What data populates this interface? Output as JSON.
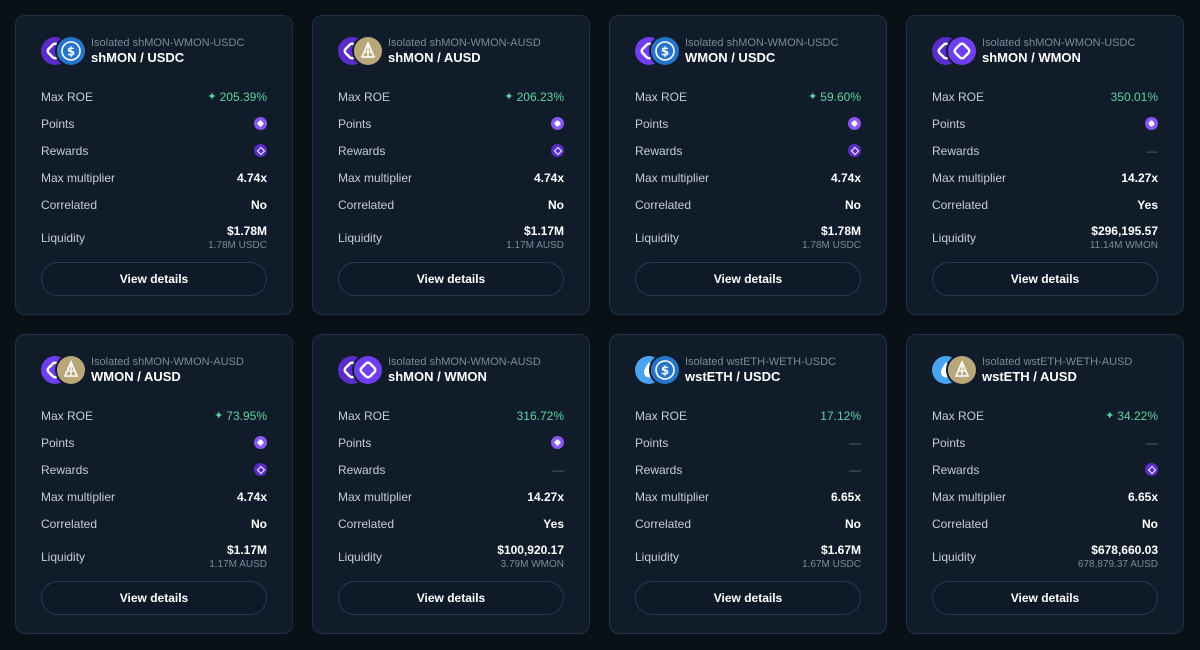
{
  "labels": {
    "max_roe": "Max ROE",
    "points": "Points",
    "rewards": "Rewards",
    "max_multiplier": "Max multiplier",
    "correlated": "Correlated",
    "liquidity": "Liquidity",
    "view_details": "View details",
    "dash": "—",
    "sparkle": "✦"
  },
  "colors": {
    "background": "#0a1018",
    "card": "#111c2b",
    "roe_green": "#5fd3a1",
    "points_purple": "#8a57f0",
    "shmon": "#5a2cc9",
    "wmon": "#6e3ef0",
    "usdc": "#2775ca",
    "ausd": "#b9a77a",
    "wsteth": "#4aa3f0"
  },
  "cards": [
    {
      "subtitle": "Isolated shMON-WMON-USDC",
      "title": "shMON / USDC",
      "icons": [
        "shmon-icon",
        "usdc-icon"
      ],
      "roe": "205.39%",
      "roe_sparkle": true,
      "points": true,
      "rewards": true,
      "multiplier": "4.74x",
      "correlated": "No",
      "liq_usd": "$1.78M",
      "liq_amount": "1.78M USDC"
    },
    {
      "subtitle": "Isolated shMON-WMON-AUSD",
      "title": "shMON / AUSD",
      "icons": [
        "shmon-icon",
        "ausd-icon"
      ],
      "roe": "206.23%",
      "roe_sparkle": true,
      "points": true,
      "rewards": true,
      "multiplier": "4.74x",
      "correlated": "No",
      "liq_usd": "$1.17M",
      "liq_amount": "1.17M AUSD"
    },
    {
      "subtitle": "Isolated shMON-WMON-USDC",
      "title": "WMON / USDC",
      "icons": [
        "wmon-icon",
        "usdc-icon"
      ],
      "roe": "59.60%",
      "roe_sparkle": true,
      "points": true,
      "rewards": true,
      "multiplier": "4.74x",
      "correlated": "No",
      "liq_usd": "$1.78M",
      "liq_amount": "1.78M USDC"
    },
    {
      "subtitle": "Isolated shMON-WMON-USDC",
      "title": "shMON / WMON",
      "icons": [
        "shmon-icon",
        "wmon-icon"
      ],
      "roe": "350.01%",
      "roe_sparkle": false,
      "points": true,
      "rewards": false,
      "multiplier": "14.27x",
      "correlated": "Yes",
      "liq_usd": "$296,195.57",
      "liq_amount": "11.14M WMON"
    },
    {
      "subtitle": "Isolated shMON-WMON-AUSD",
      "title": "WMON / AUSD",
      "icons": [
        "wmon-icon",
        "ausd-icon"
      ],
      "roe": "73.95%",
      "roe_sparkle": true,
      "points": true,
      "rewards": true,
      "multiplier": "4.74x",
      "correlated": "No",
      "liq_usd": "$1.17M",
      "liq_amount": "1.17M AUSD"
    },
    {
      "subtitle": "Isolated shMON-WMON-AUSD",
      "title": "shMON / WMON",
      "icons": [
        "shmon-icon",
        "wmon-icon"
      ],
      "roe": "316.72%",
      "roe_sparkle": false,
      "points": true,
      "rewards": false,
      "multiplier": "14.27x",
      "correlated": "Yes",
      "liq_usd": "$100,920.17",
      "liq_amount": "3.79M WMON"
    },
    {
      "subtitle": "Isolated wstETH-WETH-USDC",
      "title": "wstETH / USDC",
      "icons": [
        "wsteth-icon",
        "usdc-icon"
      ],
      "roe": "17.12%",
      "roe_sparkle": false,
      "points": false,
      "rewards": false,
      "multiplier": "6.65x",
      "correlated": "No",
      "liq_usd": "$1.67M",
      "liq_amount": "1.67M USDC"
    },
    {
      "subtitle": "Isolated wstETH-WETH-AUSD",
      "title": "wstETH / AUSD",
      "icons": [
        "wsteth-icon",
        "ausd-icon"
      ],
      "roe": "34.22%",
      "roe_sparkle": true,
      "points": false,
      "rewards": true,
      "multiplier": "6.65x",
      "correlated": "No",
      "liq_usd": "$678,660.03",
      "liq_amount": "678,879.37 AUSD"
    }
  ]
}
